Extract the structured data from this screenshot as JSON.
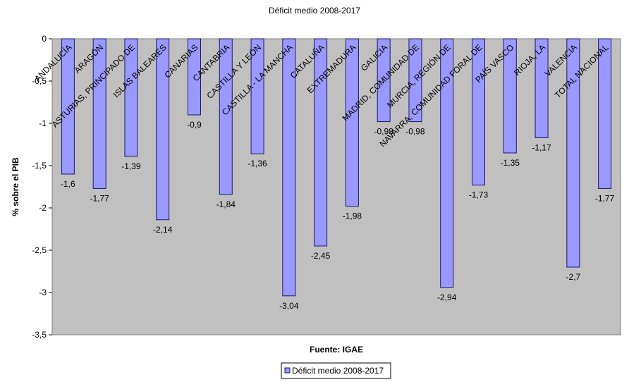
{
  "chart_data": {
    "type": "bar",
    "title": "Déficit medio 2008-2017",
    "xlabel": "Fuente: IGAE",
    "ylabel": "% sobre el PIB",
    "ylim": [
      -3.5,
      0
    ],
    "yticks": [
      "0",
      "-0,5",
      "-1",
      "-1,5",
      "-2",
      "-2,5",
      "-3",
      "-3,5"
    ],
    "grid": false,
    "legend_position": "bottom",
    "colors": {
      "bar_fill": "#9999ff",
      "bar_stroke": "#1a1a66",
      "plot_bg": "#c0c0c0"
    },
    "categories": [
      "ANDALUCÍA",
      "ARAGÓN",
      "ASTURIAS, PRINCIPADO DE",
      "ISLAS BALEARES",
      "CANARIAS",
      "CANTABRIA",
      "CASTILLA Y LEÓN",
      "CASTILLA - LA MANCHA",
      "CATALUÑA",
      "EXTREMADURA",
      "GALICIA",
      "MADRID, COMUNIDAD DE",
      "MURCIA, REGIÓN DE",
      "NAVARRA, COMUNIDAD FORAL DE",
      "PAÍS VASCO",
      "RIOJA, LA",
      "VALENCIA",
      "TOTAL NACIONAL"
    ],
    "series": [
      {
        "name": "Déficit medio 2008-2017",
        "values": [
          -1.6,
          -1.77,
          -1.39,
          -2.14,
          -0.9,
          -1.84,
          -1.36,
          -3.04,
          -2.45,
          -1.98,
          -0.98,
          -0.98,
          -2.94,
          -1.73,
          -1.35,
          -1.17,
          -2.7,
          -1.77
        ],
        "labels": [
          "-1,6",
          "-1,77",
          "-1,39",
          "-2,14",
          "-0,9",
          "-1,84",
          "-1,36",
          "-3,04",
          "-2,45",
          "-1,98",
          "-0,98",
          "-0,98",
          "-2,94",
          "-1,73",
          "-1,35",
          "-1,17",
          "-2,7",
          "-1,77"
        ]
      }
    ]
  }
}
